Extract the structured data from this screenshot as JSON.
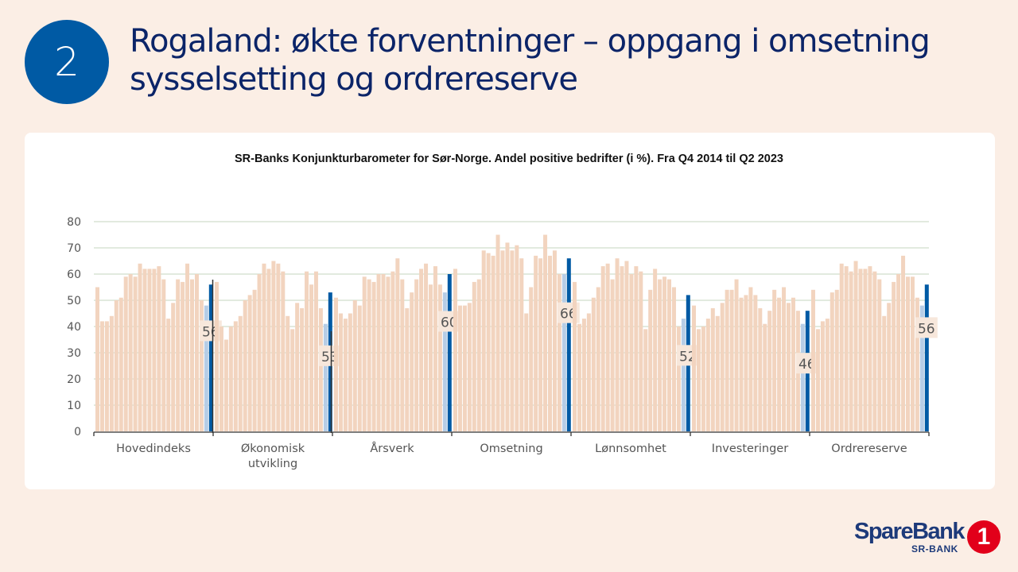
{
  "slide": {
    "number": "2",
    "title": "Rogaland: økte forventninger – oppgang i omsetning sysselsetting og ordrereserve"
  },
  "logo": {
    "name": "SpareBank",
    "one": "1",
    "sub": "SR-BANK"
  },
  "colors": {
    "history": "#f2d4bf",
    "previous": "#b6cde6",
    "current": "#005aa4",
    "grid": "#c4d4bf",
    "label_bg": "#f7e7db"
  },
  "chart_data": {
    "type": "bar",
    "title": "SR-Banks Konjunkturbarometer  for Sør-Norge. Andel positive bedrifter (i %). Fra Q4 2014 til Q2 2023",
    "xlabel": "",
    "ylabel": "",
    "ylim": [
      0,
      80
    ],
    "yticks": [
      "0",
      "10",
      "20",
      "30",
      "40",
      "50",
      "60",
      "70",
      "80"
    ],
    "grid": true,
    "categories": [
      "Hovedindeks",
      "Økonomisk utvikling",
      "Årsverk",
      "Omsetning",
      "Lønnsomhet",
      "Investeringer",
      "Ordrereserve"
    ],
    "groups": [
      {
        "name": "Hovedindeks",
        "history": [
          55,
          42,
          42,
          44,
          50,
          51,
          59,
          60,
          59,
          64,
          62,
          62,
          62,
          63,
          58,
          43,
          49,
          58,
          57,
          64,
          58,
          60,
          50
        ],
        "previous": 48,
        "current": 56,
        "label": "56"
      },
      {
        "name": "Økonomisk utvikling",
        "history": [
          57,
          40,
          35,
          40,
          42,
          44,
          50,
          52,
          54,
          60,
          64,
          62,
          65,
          64,
          61,
          44,
          39,
          49,
          47,
          61,
          56,
          61,
          47
        ],
        "previous": 41,
        "current": 53,
        "label": "53"
      },
      {
        "name": "Årsverk",
        "history": [
          51,
          45,
          43,
          45,
          50,
          48,
          59,
          58,
          57,
          60,
          60,
          59,
          61,
          66,
          58,
          47,
          53,
          58,
          62,
          64,
          56,
          63,
          56
        ],
        "previous": 53,
        "current": 60,
        "label": "60"
      },
      {
        "name": "Omsetning",
        "history": [
          62,
          48,
          48,
          49,
          57,
          58,
          69,
          68,
          67,
          75,
          69,
          72,
          69,
          71,
          66,
          45,
          55,
          67,
          66,
          75,
          67,
          69,
          60
        ],
        "previous": 60,
        "current": 66,
        "label": "66"
      },
      {
        "name": "Lønnsomhet",
        "history": [
          57,
          41,
          43,
          45,
          51,
          55,
          63,
          64,
          58,
          66,
          63,
          65,
          60,
          63,
          61,
          39,
          54,
          62,
          58,
          59,
          58,
          55,
          40
        ],
        "previous": 43,
        "current": 52,
        "label": "52"
      },
      {
        "name": "Investeringer",
        "history": [
          48,
          39,
          40,
          43,
          47,
          44,
          49,
          54,
          54,
          58,
          51,
          52,
          55,
          52,
          47,
          41,
          46,
          54,
          51,
          55,
          49,
          51,
          46
        ],
        "previous": 41,
        "current": 46,
        "label": "46"
      },
      {
        "name": "Ordrereserve",
        "history": [
          54,
          39,
          42,
          43,
          53,
          54,
          64,
          63,
          61,
          65,
          62,
          62,
          63,
          61,
          58,
          44,
          49,
          57,
          60,
          67,
          59,
          59,
          51
        ],
        "previous": 48,
        "current": 56,
        "label": "56"
      }
    ]
  }
}
